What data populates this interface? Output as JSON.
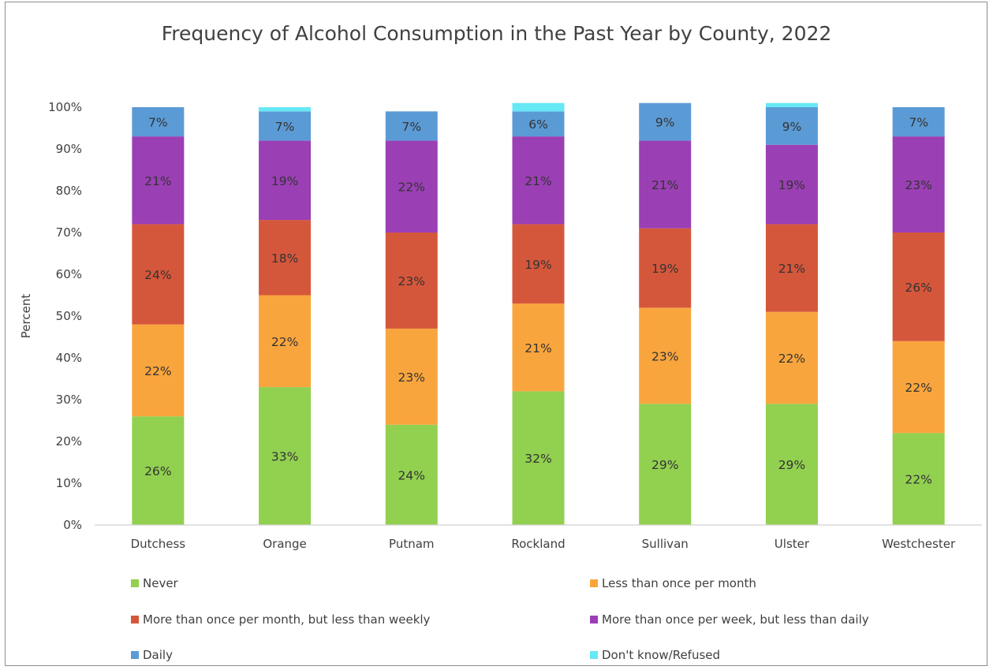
{
  "chart_data": {
    "type": "bar",
    "stacked": true,
    "title": "Frequency of Alcohol Consumption in the Past Year by County, 2022",
    "ylabel": "Percent",
    "xlabel": "",
    "ylim": [
      0,
      100
    ],
    "yticks": [
      "0%",
      "10%",
      "20%",
      "30%",
      "40%",
      "50%",
      "60%",
      "70%",
      "80%",
      "90%",
      "100%"
    ],
    "grid": false,
    "legend_position": "bottom",
    "categories": [
      "Dutchess",
      "Orange",
      "Putnam",
      "Rockland",
      "Sullivan",
      "Ulster",
      "Westchester"
    ],
    "series": [
      {
        "name": "Never",
        "color": "#92d050",
        "values": [
          26,
          33,
          24,
          32,
          29,
          29,
          22
        ],
        "labels": [
          "26%",
          "33%",
          "24%",
          "32%",
          "29%",
          "29%",
          "22%"
        ]
      },
      {
        "name": "Less than once per month",
        "color": "#f9a53e",
        "values": [
          22,
          22,
          23,
          21,
          23,
          22,
          22
        ],
        "labels": [
          "22%",
          "22%",
          "23%",
          "21%",
          "23%",
          "22%",
          "22%"
        ]
      },
      {
        "name": "More than once per month, but less than weekly",
        "color": "#d5573b",
        "values": [
          24,
          18,
          23,
          19,
          19,
          21,
          26
        ],
        "labels": [
          "24%",
          "18%",
          "23%",
          "19%",
          "19%",
          "21%",
          "26%"
        ]
      },
      {
        "name": "More than once per week, but less than daily",
        "color": "#9b3fb5",
        "values": [
          21,
          19,
          22,
          21,
          21,
          19,
          23
        ],
        "labels": [
          "21%",
          "19%",
          "22%",
          "21%",
          "21%",
          "19%",
          "23%"
        ]
      },
      {
        "name": "Daily",
        "color": "#5b9bd5",
        "values": [
          7,
          7,
          7,
          6,
          9,
          9,
          7
        ],
        "labels": [
          "7%",
          "7%",
          "7%",
          "6%",
          "9%",
          "9%",
          "7%"
        ]
      },
      {
        "name": "Don't know/Refused",
        "color": "#66e8f5",
        "values": [
          0,
          1,
          0,
          2,
          0,
          1,
          0
        ],
        "labels": [
          "",
          "",
          "",
          "",
          "",
          "",
          ""
        ]
      }
    ]
  }
}
